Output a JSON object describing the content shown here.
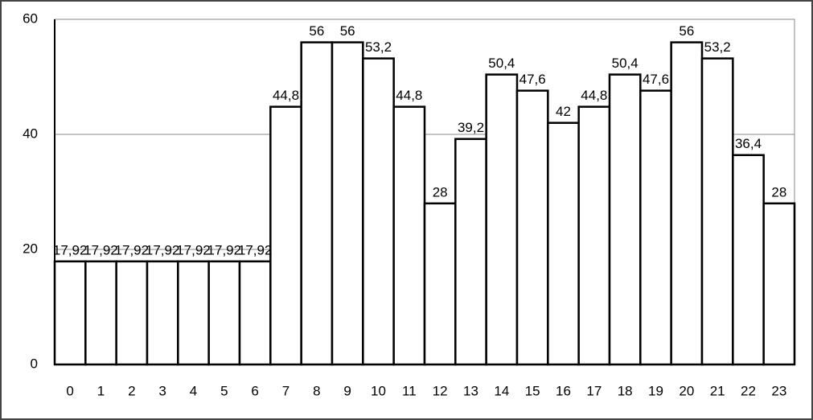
{
  "chart_data": {
    "type": "bar",
    "categories": [
      "0",
      "1",
      "2",
      "3",
      "4",
      "5",
      "6",
      "7",
      "8",
      "9",
      "10",
      "11",
      "12",
      "13",
      "14",
      "15",
      "16",
      "17",
      "18",
      "19",
      "20",
      "21",
      "22",
      "23"
    ],
    "values": [
      17.92,
      17.92,
      17.92,
      17.92,
      17.92,
      17.92,
      17.92,
      44.8,
      56,
      56,
      53.2,
      44.8,
      28,
      39.2,
      50.4,
      47.6,
      42,
      44.8,
      50.4,
      47.6,
      56,
      53.2,
      36.4,
      28
    ],
    "value_labels": [
      "17,92",
      "17,92",
      "17,92",
      "17,92",
      "17,92",
      "17,92",
      "17,92",
      "44,8",
      "56",
      "56",
      "53,2",
      "44,8",
      "28",
      "39,2",
      "50,4",
      "47,6",
      "42",
      "44,8",
      "50,4",
      "47,6",
      "56",
      "53,2",
      "36,4",
      "28"
    ],
    "color": "#ffffff",
    "ylim": [
      0,
      60
    ],
    "yticks": [
      0,
      20,
      40,
      60
    ],
    "grid": true
  }
}
